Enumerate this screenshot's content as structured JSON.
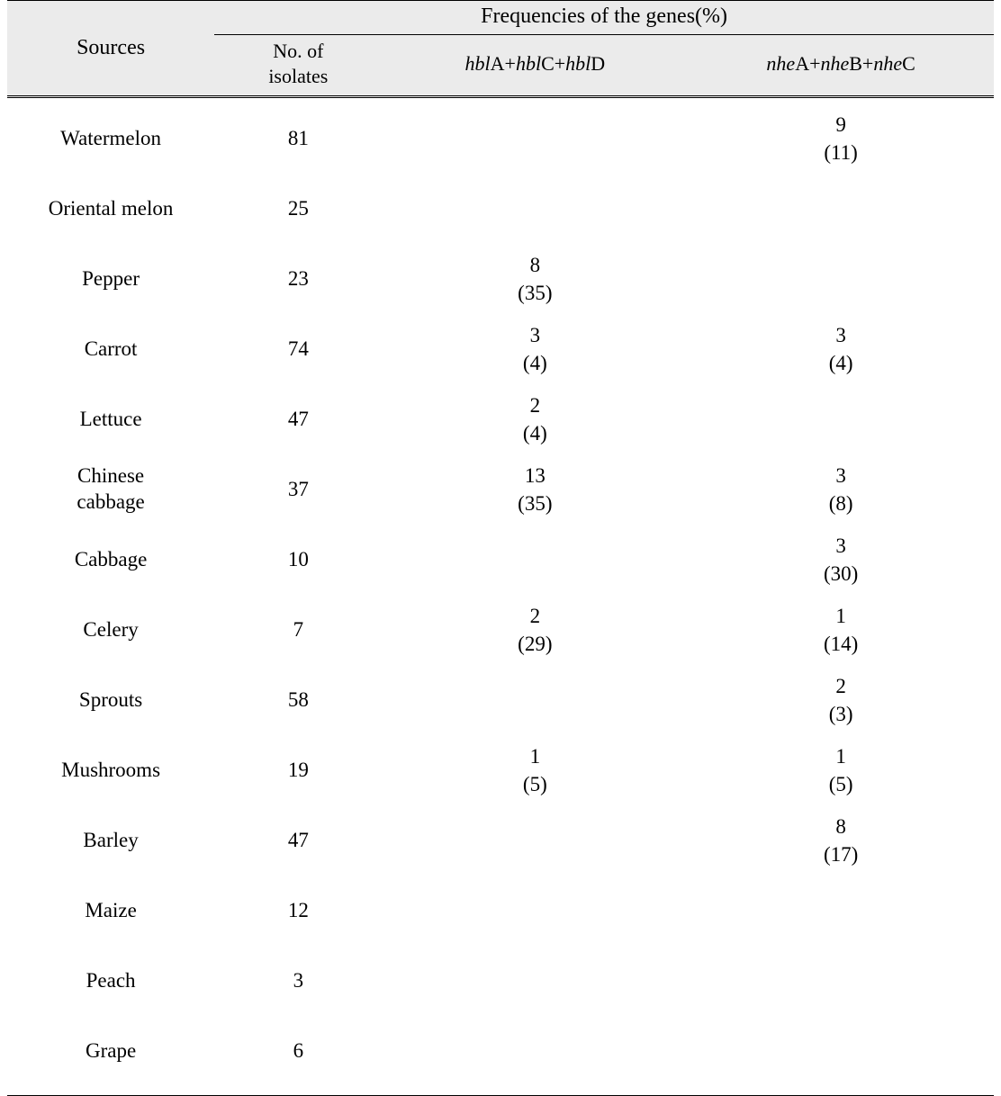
{
  "table": {
    "type": "table",
    "background_color": "#ffffff",
    "header_bg": "#ebebeb",
    "border_color": "#000000",
    "font_family": "Times New Roman / Batang (serif)",
    "body_fontsize_pt": 17,
    "header_fontsize_pt": 18,
    "col_widths_pct": [
      21,
      17,
      31,
      31
    ],
    "columns": {
      "sources_label": "Sources",
      "group_label": "Frequencies of the genes(%)",
      "isolates_label_l1": "No. of",
      "isolates_label_l2": "isolates",
      "hbl_parts": [
        "hbl",
        "A+",
        "hbl",
        "C+",
        "hbl",
        "D"
      ],
      "nhe_parts": [
        "nhe",
        "A+",
        "nhe",
        "B+",
        "nhe",
        "C"
      ]
    },
    "rows": [
      {
        "source": "Watermelon",
        "isolates": "81",
        "hbl": {
          "n": "",
          "p": ""
        },
        "nhe": {
          "n": "9",
          "p": "(11)"
        }
      },
      {
        "source": "Oriental melon",
        "isolates": "25",
        "hbl": {
          "n": "",
          "p": ""
        },
        "nhe": {
          "n": "",
          "p": ""
        }
      },
      {
        "source": "Pepper",
        "isolates": "23",
        "hbl": {
          "n": "8",
          "p": "(35)"
        },
        "nhe": {
          "n": "",
          "p": ""
        }
      },
      {
        "source": "Carrot",
        "isolates": "74",
        "hbl": {
          "n": "3",
          "p": "(4)"
        },
        "nhe": {
          "n": "3",
          "p": "(4)"
        }
      },
      {
        "source": "Lettuce",
        "isolates": "47",
        "hbl": {
          "n": "2",
          "p": "(4)"
        },
        "nhe": {
          "n": "",
          "p": ""
        }
      },
      {
        "source_l1": "Chinese",
        "source_l2": "cabbage",
        "isolates": "37",
        "hbl": {
          "n": "13",
          "p": "(35)"
        },
        "nhe": {
          "n": "3",
          "p": "(8)"
        }
      },
      {
        "source": "Cabbage",
        "isolates": "10",
        "hbl": {
          "n": "",
          "p": ""
        },
        "nhe": {
          "n": "3",
          "p": "(30)"
        }
      },
      {
        "source": "Celery",
        "isolates": "7",
        "hbl": {
          "n": "2",
          "p": "(29)"
        },
        "nhe": {
          "n": "1",
          "p": "(14)"
        }
      },
      {
        "source": "Sprouts",
        "isolates": "58",
        "hbl": {
          "n": "",
          "p": ""
        },
        "nhe": {
          "n": "2",
          "p": "(3)"
        }
      },
      {
        "source": "Mushrooms",
        "isolates": "19",
        "hbl": {
          "n": "1",
          "p": "(5)"
        },
        "nhe": {
          "n": "1",
          "p": "(5)"
        }
      },
      {
        "source": "Barley",
        "isolates": "47",
        "hbl": {
          "n": "",
          "p": ""
        },
        "nhe": {
          "n": "8",
          "p": "(17)"
        }
      },
      {
        "source": "Maize",
        "isolates": "12",
        "hbl": {
          "n": "",
          "p": ""
        },
        "nhe": {
          "n": "",
          "p": ""
        }
      },
      {
        "source": "Peach",
        "isolates": "3",
        "hbl": {
          "n": "",
          "p": ""
        },
        "nhe": {
          "n": "",
          "p": ""
        }
      },
      {
        "source": "Grape",
        "isolates": "6",
        "hbl": {
          "n": "",
          "p": ""
        },
        "nhe": {
          "n": "",
          "p": ""
        }
      }
    ]
  }
}
